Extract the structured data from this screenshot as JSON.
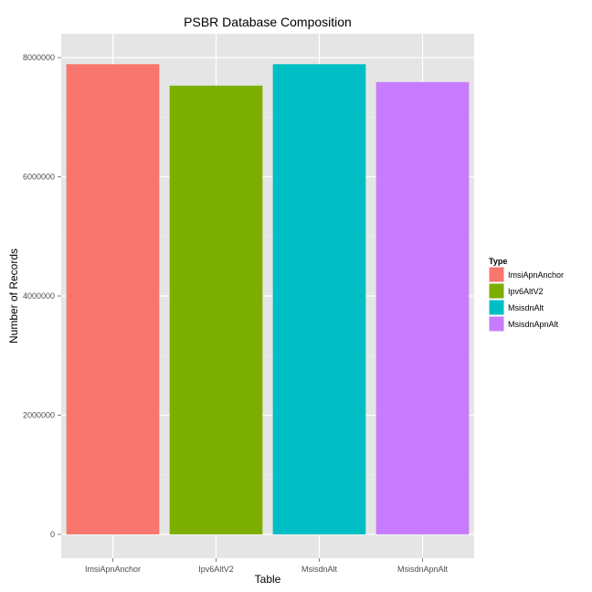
{
  "chart_data": {
    "type": "bar",
    "title": "PSBR Database Composition",
    "xlabel": "Table",
    "ylabel": "Number of Records",
    "categories": [
      "ImsiApnAnchor",
      "Ipv6AltV2",
      "MsisdnAlt",
      "MsisdnApnAlt"
    ],
    "values": [
      7890000,
      7530000,
      7890000,
      7590000
    ],
    "colors": [
      "#F8766D",
      "#7CAE00",
      "#00BFC4",
      "#C77CFF"
    ],
    "ylim": [
      -400000,
      8400000
    ],
    "yticks": [
      0,
      2000000,
      4000000,
      6000000,
      8000000
    ],
    "ytick_labels": [
      "0",
      "2000000",
      "4000000",
      "6000000",
      "8000000"
    ],
    "grid": true,
    "legend": {
      "title": "Type",
      "position": "right",
      "entries": [
        "ImsiApnAnchor",
        "Ipv6AltV2",
        "MsisdnAlt",
        "MsisdnApnAlt"
      ]
    }
  }
}
